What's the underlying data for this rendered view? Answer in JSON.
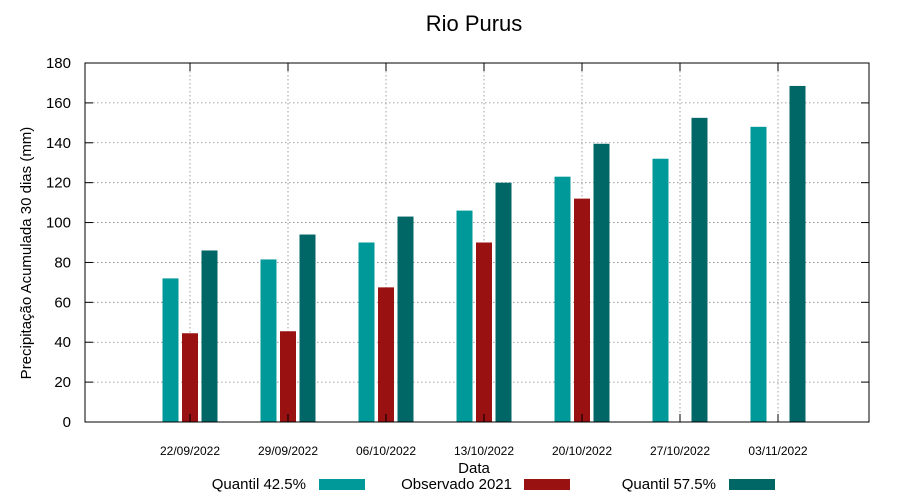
{
  "chart_data": {
    "type": "bar",
    "title": "Rio Purus",
    "xlabel": "Data",
    "ylabel": "Precipitação Acumulada 30 dias (mm)",
    "ylim": [
      0,
      180
    ],
    "yticks": [
      0,
      20,
      40,
      60,
      80,
      100,
      120,
      140,
      160,
      180
    ],
    "grid": true,
    "legend_position": "bottom",
    "categories": [
      "22/09/2022",
      "29/09/2022",
      "06/10/2022",
      "13/10/2022",
      "20/10/2022",
      "27/10/2022",
      "03/11/2022"
    ],
    "series": [
      {
        "name": "Quantil 42.5%",
        "color": "#009999",
        "values": [
          72,
          81.5,
          90,
          106,
          123,
          132,
          148
        ]
      },
      {
        "name": "Observado 2021",
        "color": "#991111",
        "values": [
          44.5,
          45.5,
          67.5,
          90,
          112,
          null,
          null
        ]
      },
      {
        "name": "Quantil 57.5%",
        "color": "#006666",
        "values": [
          86,
          94,
          103,
          120,
          139.5,
          152.5,
          168.5
        ]
      }
    ]
  }
}
